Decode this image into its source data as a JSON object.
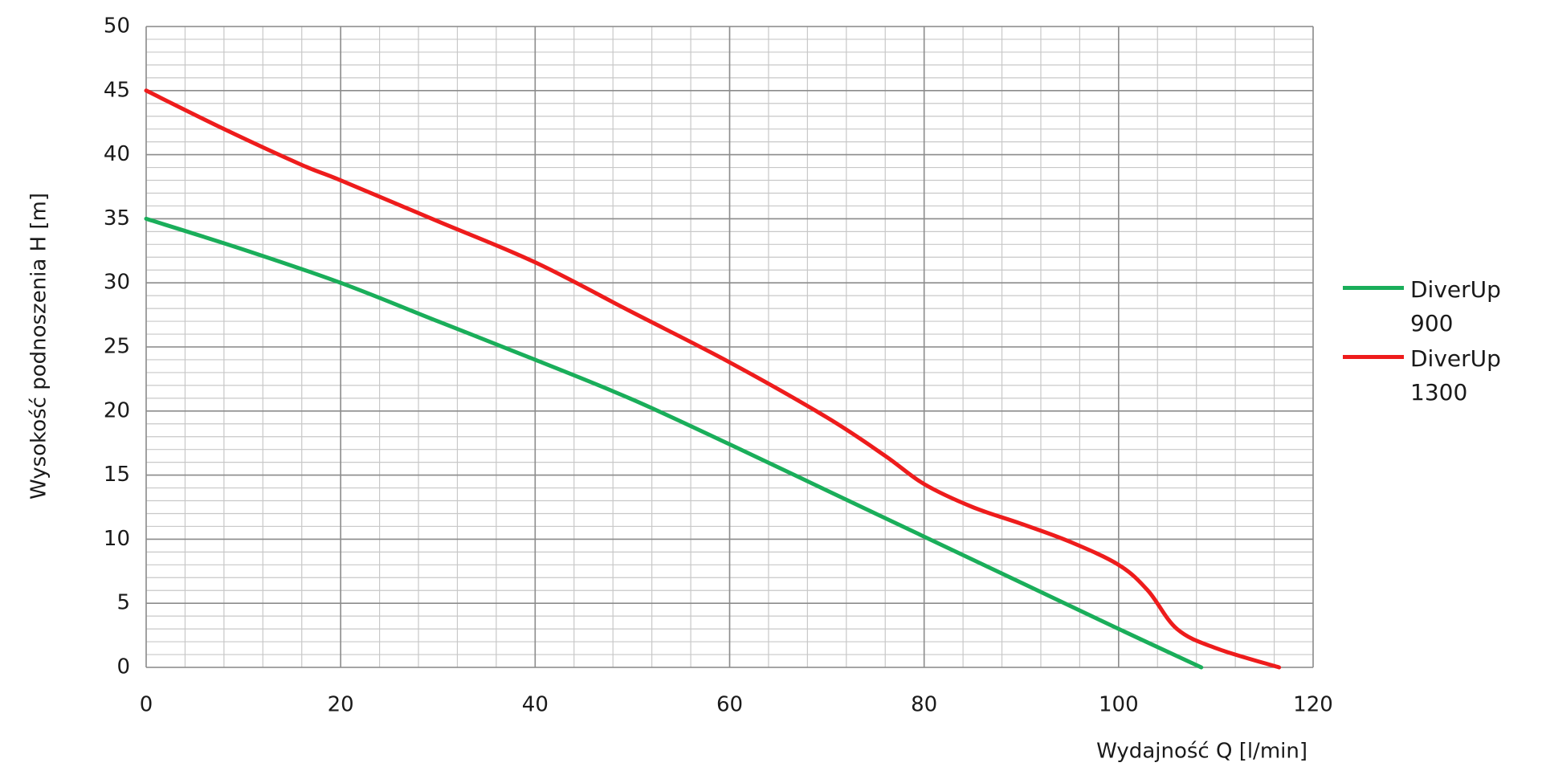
{
  "chart_data": {
    "type": "line",
    "x_label": "Wydajność Q [l/min]",
    "y_label": "Wysokość podnoszenia H [m]",
    "xlim": [
      0,
      120
    ],
    "xticks": [
      0,
      20,
      40,
      60,
      80,
      100,
      120
    ],
    "ylim": [
      0,
      50
    ],
    "yticks": [
      0,
      5,
      10,
      15,
      20,
      25,
      30,
      35,
      40,
      45,
      50
    ],
    "grid": true,
    "minor_grid_step": [
      4,
      1
    ],
    "legend": "right",
    "series": [
      {
        "name": "DiverUp 900",
        "color": "#1aae5a",
        "x": [
          0,
          10,
          20,
          30,
          40,
          50,
          60,
          70,
          80,
          90,
          100,
          108.5
        ],
        "values": [
          35,
          32.6,
          30,
          27,
          24,
          20.9,
          17.4,
          13.8,
          10.2,
          6.6,
          3,
          0
        ]
      },
      {
        "name": "DiverUp 1300",
        "color": "#ee1c1c",
        "x": [
          0,
          8,
          16,
          20,
          30,
          40,
          50,
          60,
          70,
          76,
          80,
          85,
          90,
          95,
          100,
          103,
          106,
          110,
          116.5
        ],
        "values": [
          45,
          42,
          39.2,
          38,
          34.8,
          31.6,
          27.7,
          23.8,
          19.5,
          16.5,
          14.3,
          12.5,
          11.2,
          9.8,
          8,
          6,
          3,
          1.5,
          0
        ]
      }
    ]
  }
}
